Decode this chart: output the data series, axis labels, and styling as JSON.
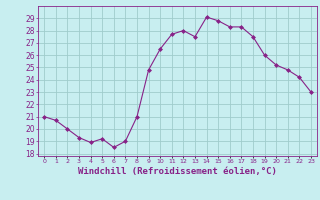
{
  "x": [
    0,
    1,
    2,
    3,
    4,
    5,
    6,
    7,
    8,
    9,
    10,
    11,
    12,
    13,
    14,
    15,
    16,
    17,
    18,
    19,
    20,
    21,
    22,
    23
  ],
  "y": [
    21.0,
    20.7,
    20.0,
    19.3,
    18.9,
    19.2,
    18.5,
    19.0,
    21.0,
    24.8,
    26.5,
    27.7,
    28.0,
    27.5,
    29.1,
    28.8,
    28.3,
    28.3,
    27.5,
    26.0,
    25.2,
    24.8,
    24.2,
    23.0
  ],
  "line_color": "#882288",
  "marker": "D",
  "marker_size": 2,
  "bg_color": "#c8eef0",
  "grid_color": "#a0cccc",
  "xlabel": "Windchill (Refroidissement éolien,°C)",
  "xlabel_fontsize": 6.5,
  "ylabel_ticks": [
    18,
    19,
    20,
    21,
    22,
    23,
    24,
    25,
    26,
    27,
    28,
    29
  ],
  "xtick_labels": [
    "0",
    "1",
    "2",
    "3",
    "4",
    "5",
    "6",
    "7",
    "8",
    "9",
    "10",
    "11",
    "12",
    "13",
    "14",
    "15",
    "16",
    "17",
    "18",
    "19",
    "20",
    "21",
    "22",
    "23"
  ],
  "ylim": [
    17.8,
    30.0
  ],
  "xlim": [
    -0.5,
    23.5
  ]
}
